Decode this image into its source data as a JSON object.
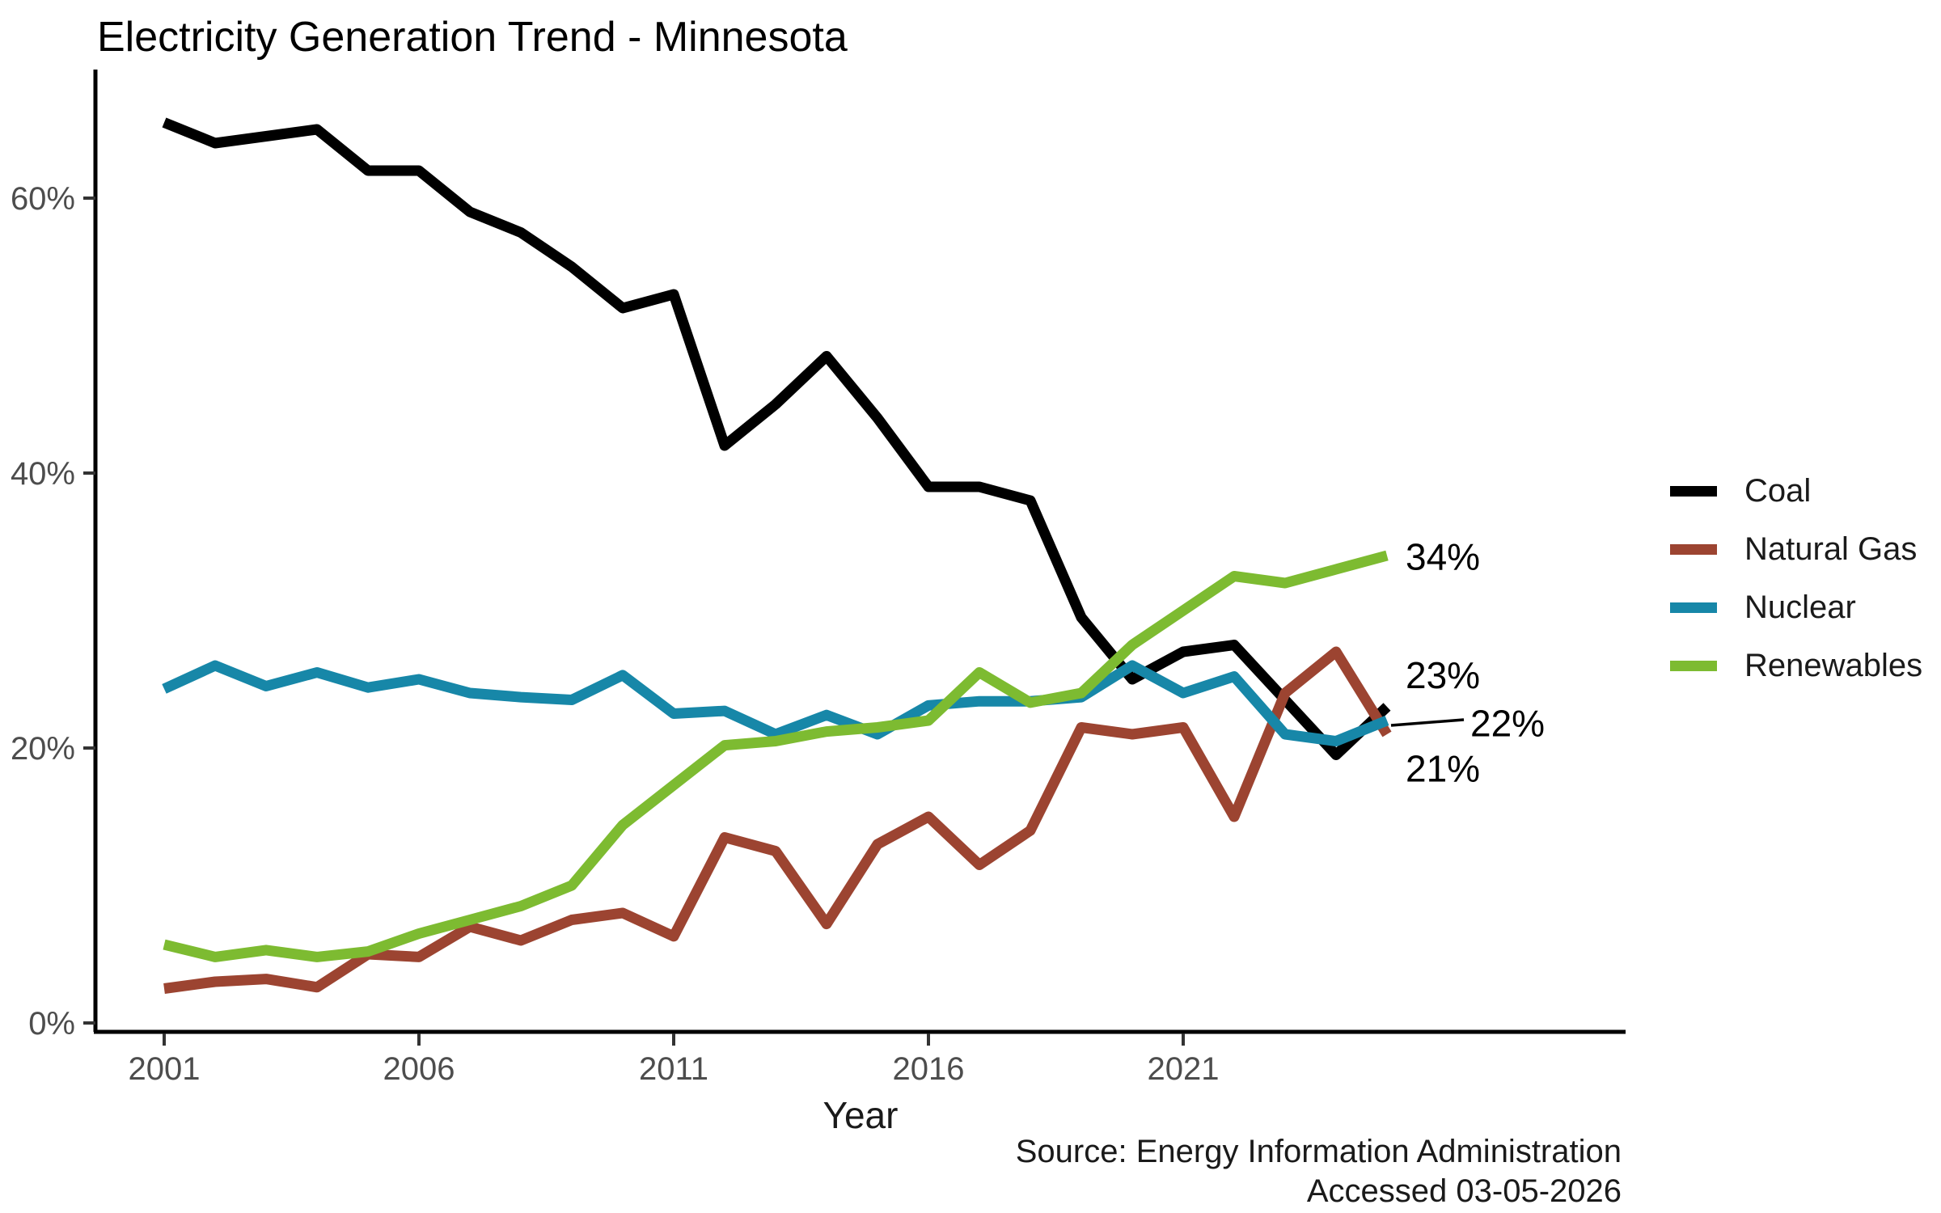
{
  "title": "Electricity Generation Trend - Minnesota",
  "xlabel": "Year",
  "source": {
    "line1": "Source: Energy Information Administration",
    "line2": "Accessed 03-05-2026"
  },
  "colors": {
    "coal": "#000000",
    "natural_gas": "#9C4431",
    "nuclear": "#1787A8",
    "renewables": "#7DBB31",
    "axis_text": "#4d4d4d",
    "axis_line": "#000000"
  },
  "chart_data": {
    "type": "line",
    "title": "Electricity Generation Trend - Minnesota",
    "xlabel": "Year",
    "ylabel": "",
    "grid": false,
    "legend_position": "right",
    "xlim": [
      2001,
      2025
    ],
    "ylim": [
      0,
      69
    ],
    "x": [
      2001,
      2002,
      2003,
      2004,
      2005,
      2006,
      2007,
      2008,
      2009,
      2010,
      2011,
      2012,
      2013,
      2014,
      2015,
      2016,
      2017,
      2018,
      2019,
      2020,
      2021,
      2022,
      2023,
      2024,
      2025
    ],
    "x_ticks": {
      "values": [
        2001,
        2006,
        2011,
        2016,
        2021
      ],
      "labels": [
        "2001",
        "2006",
        "2011",
        "2016",
        "2021"
      ]
    },
    "y_ticks": {
      "values": [
        0,
        20,
        40,
        60
      ],
      "labels": [
        "0%",
        "20%",
        "40%",
        "60%"
      ]
    },
    "series": [
      {
        "name": "Coal",
        "color": "#000000",
        "values": [
          65.5,
          64,
          64.5,
          65,
          62,
          62,
          59,
          57.5,
          55,
          52,
          53,
          42,
          45,
          48.5,
          44,
          39,
          39,
          38,
          29.5,
          25,
          27,
          27.5,
          23.5,
          19.5,
          23
        ]
      },
      {
        "name": "Natural Gas",
        "color": "#9C4431",
        "values": [
          2.5,
          3,
          3.2,
          2.6,
          5,
          4.8,
          7,
          6,
          7.5,
          8,
          6.3,
          13.5,
          12.5,
          7.2,
          13,
          15,
          11.5,
          14,
          21.5,
          21,
          21.5,
          15,
          24,
          27,
          21
        ]
      },
      {
        "name": "Nuclear",
        "color": "#1787A8",
        "values": [
          24.3,
          26,
          24.5,
          25.5,
          24.4,
          25,
          24,
          23.7,
          23.5,
          25.3,
          22.5,
          22.7,
          21,
          22.4,
          21,
          23.1,
          23.4,
          23.4,
          23.7,
          26,
          24,
          25.2,
          21,
          20.5,
          22
        ]
      },
      {
        "name": "Renewables",
        "color": "#7DBB31",
        "values": [
          5.7,
          4.8,
          5.3,
          4.8,
          5.2,
          6.5,
          7.5,
          8.5,
          10,
          14.4,
          17.3,
          20.2,
          20.5,
          21.2,
          21.5,
          22,
          25.5,
          23.3,
          24,
          27.5,
          30,
          32.5,
          32,
          33,
          34
        ]
      }
    ],
    "end_labels": [
      {
        "text": "34%",
        "series": "Renewables",
        "at_pct": 33.9,
        "leader": false
      },
      {
        "text": "23%",
        "series": "Coal",
        "at_pct": 25.3,
        "leader": false
      },
      {
        "text": "22%",
        "series": "Nuclear",
        "at_pct": 21.8,
        "leader": true
      },
      {
        "text": "21%",
        "series": "Natural Gas",
        "at_pct": 18.5,
        "leader": false
      }
    ]
  }
}
